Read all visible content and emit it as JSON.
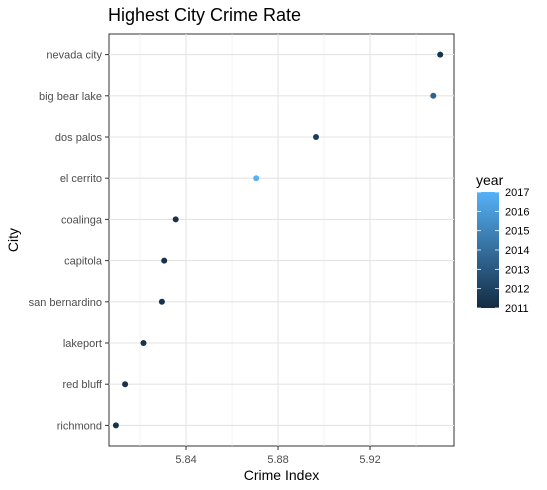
{
  "chart_data": {
    "type": "scatter",
    "title": "Highest City Crime Rate",
    "xlabel": "Crime Index",
    "ylabel": "City",
    "xlim": [
      5.8065,
      5.9565
    ],
    "x_ticks": [
      "5.84",
      "5.88",
      "5.92"
    ],
    "x_tick_values": [
      5.84,
      5.88,
      5.92
    ],
    "categories": [
      "nevada city",
      "big bear lake",
      "dos palos",
      "el cerrito",
      "coalinga",
      "capitola",
      "san bernardino",
      "lakeport",
      "red bluff",
      "richmond"
    ],
    "points": [
      {
        "city": "nevada city",
        "x": 5.9505,
        "year": 2011.4
      },
      {
        "city": "big bear lake",
        "x": 5.9475,
        "year": 2013.5
      },
      {
        "city": "dos palos",
        "x": 5.8965,
        "year": 2011.8
      },
      {
        "city": "el cerrito",
        "x": 5.8705,
        "year": 2017.0
      },
      {
        "city": "coalinga",
        "x": 5.8355,
        "year": 2011.3
      },
      {
        "city": "capitola",
        "x": 5.8305,
        "year": 2011.3
      },
      {
        "city": "san bernardino",
        "x": 5.8295,
        "year": 2011.3
      },
      {
        "city": "lakeport",
        "x": 5.8215,
        "year": 2011.3
      },
      {
        "city": "red bluff",
        "x": 5.8135,
        "year": 2011.3
      },
      {
        "city": "richmond",
        "x": 5.8095,
        "year": 2011.3
      }
    ],
    "legend": {
      "title": "year",
      "labels": [
        "2017",
        "2016",
        "2015",
        "2014",
        "2013",
        "2012",
        "2011"
      ],
      "values": [
        2017,
        2016,
        2015,
        2014,
        2013,
        2012,
        2011
      ],
      "range": [
        2011,
        2017
      ],
      "low_color": "#132B43",
      "high_color": "#56B1F7",
      "placement": "right"
    },
    "grid": true
  }
}
